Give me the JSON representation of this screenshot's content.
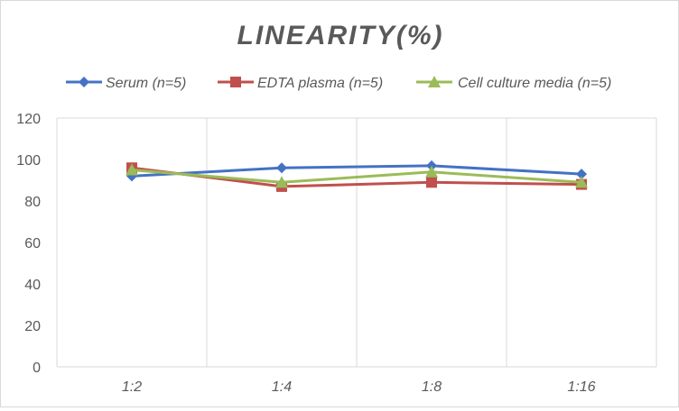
{
  "chart_data": {
    "type": "line",
    "title": "LINEARITY(%)",
    "xlabel": "",
    "ylabel": "",
    "categories": [
      "1:2",
      "1:4",
      "1:8",
      "1:16"
    ],
    "ylim": [
      0,
      120
    ],
    "yticks": [
      0,
      20,
      40,
      60,
      80,
      100,
      120
    ],
    "grid": "vertical",
    "legend_position": "top",
    "series": [
      {
        "name": "Serum (n=5)",
        "values": [
          92,
          96,
          97,
          93
        ],
        "color": "#4472C4",
        "marker": "diamond"
      },
      {
        "name": "EDTA plasma (n=5)",
        "values": [
          96,
          87,
          89,
          88
        ],
        "color": "#C0504D",
        "marker": "square"
      },
      {
        "name": "Cell culture media (n=5)",
        "values": [
          95,
          89,
          94,
          89
        ],
        "color": "#9BBB59",
        "marker": "triangle"
      }
    ]
  }
}
